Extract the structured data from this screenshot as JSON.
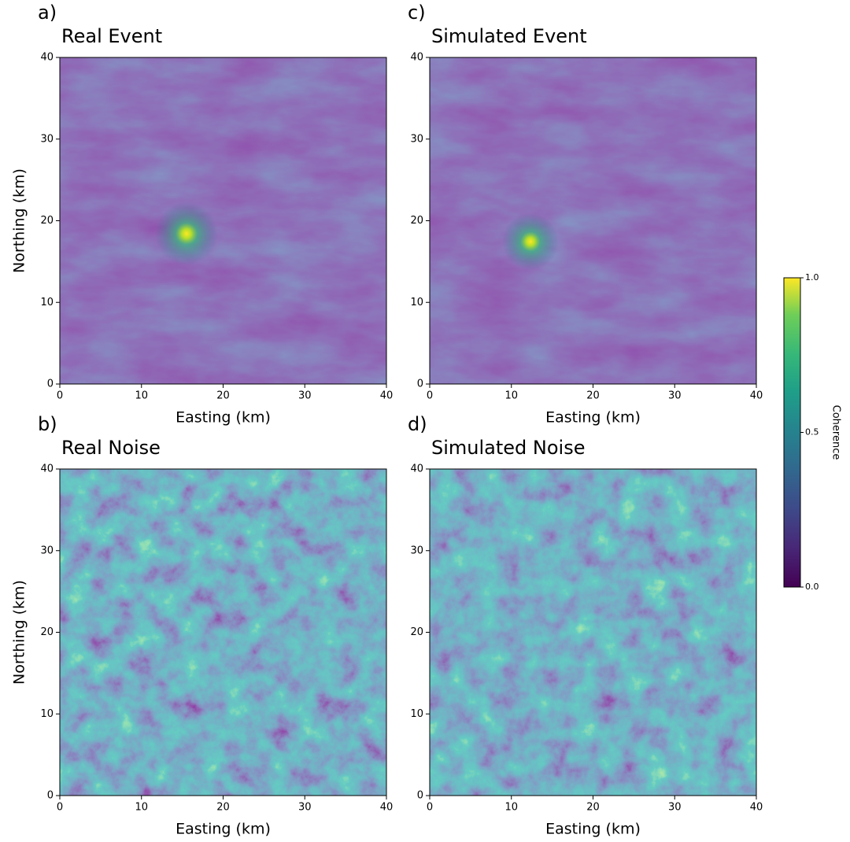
{
  "chart_data": [
    {
      "type": "heatmap",
      "panel_label": "a)",
      "title": "Real Event",
      "xlabel": "Easting (km)",
      "ylabel": "Northing (km)",
      "xlim": [
        0,
        40
      ],
      "ylim": [
        0,
        40
      ],
      "xticks": [
        0,
        10,
        20,
        30,
        40
      ],
      "yticks": [
        0,
        10,
        20,
        30,
        40
      ]
    },
    {
      "type": "heatmap",
      "panel_label": "b)",
      "title": "Real Noise",
      "xlabel": "Easting (km)",
      "ylabel": "Northing (km)",
      "xlim": [
        0,
        40
      ],
      "ylim": [
        0,
        40
      ],
      "xticks": [
        0,
        10,
        20,
        30,
        40
      ],
      "yticks": [
        0,
        10,
        20,
        30,
        40
      ]
    },
    {
      "type": "heatmap",
      "panel_label": "c)",
      "title": "Simulated Event",
      "xlabel": "Easting (km)",
      "xlim": [
        0,
        40
      ],
      "ylim": [
        0,
        40
      ],
      "xticks": [
        0,
        10,
        20,
        30,
        40
      ],
      "yticks": [
        0,
        10,
        20,
        30,
        40
      ]
    },
    {
      "type": "heatmap",
      "panel_label": "d)",
      "title": "Simulated Noise",
      "xlabel": "Easting (km)",
      "xlim": [
        0,
        40
      ],
      "ylim": [
        0,
        40
      ],
      "xticks": [
        0,
        10,
        20,
        30,
        40
      ],
      "yticks": [
        0,
        10,
        20,
        30,
        40
      ]
    }
  ],
  "colorbar": {
    "label": "Coherence",
    "lim": [
      0,
      1
    ],
    "ticks": [
      {
        "value": 1,
        "label": "1.0"
      },
      0.5,
      {
        "value": 0,
        "label": "0.0"
      }
    ]
  }
}
